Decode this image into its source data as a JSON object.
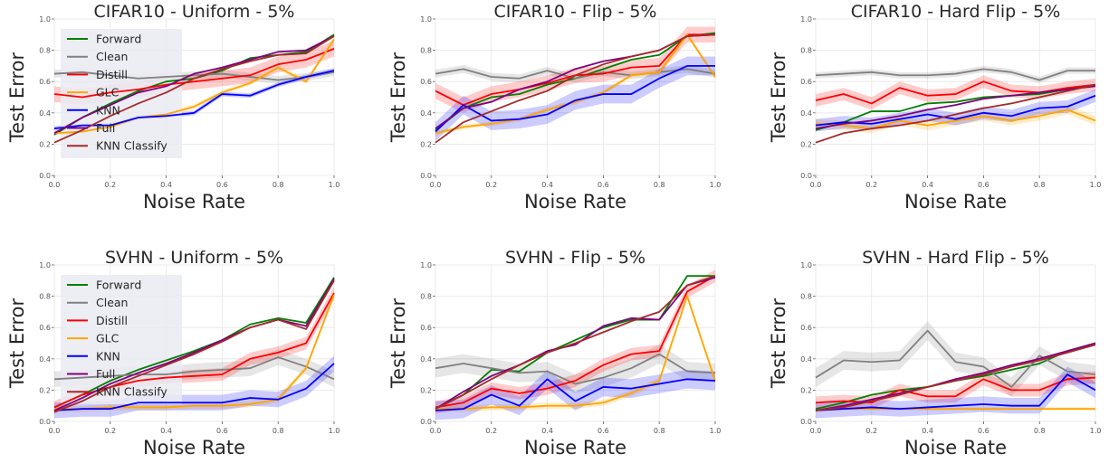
{
  "chart_data": [
    {
      "type": "line",
      "title": "CIFAR10 - Uniform - 5%",
      "xlabel": "Noise Rate",
      "ylabel": "Test Error",
      "xlim": [
        0,
        1
      ],
      "ylim": [
        0,
        1
      ],
      "xticks": [
        "0.0",
        "0.2",
        "0.4",
        "0.6",
        "0.8",
        "1.0"
      ],
      "yticks": [
        "0.0",
        "0.2",
        "0.4",
        "0.6",
        "0.8",
        "1.0"
      ],
      "legend": "upper-left",
      "x": [
        0,
        0.1,
        0.2,
        0.3,
        0.4,
        0.5,
        0.6,
        0.7,
        0.8,
        0.9,
        1.0
      ],
      "series": [
        {
          "name": "Forward",
          "color": "#008000",
          "values": [
            0.26,
            0.37,
            0.46,
            0.54,
            0.6,
            0.62,
            0.67,
            0.75,
            0.77,
            0.79,
            0.9
          ],
          "band": 0
        },
        {
          "name": "Clean",
          "color": "#808080",
          "values": [
            0.65,
            0.66,
            0.64,
            0.62,
            0.63,
            0.64,
            0.65,
            0.63,
            0.61,
            0.63,
            0.66
          ],
          "band": 0.025
        },
        {
          "name": "Distill",
          "color": "#ff0000",
          "values": [
            0.52,
            0.5,
            0.53,
            0.55,
            0.58,
            0.6,
            0.62,
            0.64,
            0.71,
            0.74,
            0.81
          ],
          "band": 0.05
        },
        {
          "name": "GLC",
          "color": "#ffa500",
          "values": [
            0.27,
            0.28,
            0.31,
            0.37,
            0.39,
            0.44,
            0.53,
            0.59,
            0.69,
            0.6,
            0.87
          ],
          "band": 0.015
        },
        {
          "name": "KNN",
          "color": "#0000ff",
          "values": [
            0.3,
            0.32,
            0.32,
            0.37,
            0.38,
            0.4,
            0.52,
            0.51,
            0.58,
            0.63,
            0.67
          ],
          "band": 0.015
        },
        {
          "name": "Full",
          "color": "#800080",
          "values": [
            0.27,
            0.37,
            0.45,
            0.53,
            0.57,
            0.65,
            0.69,
            0.74,
            0.79,
            0.8,
            0.89
          ],
          "band": 0
        },
        {
          "name": "KNN Classify",
          "color": "#a52a2a",
          "values": [
            0.21,
            0.29,
            0.38,
            0.46,
            0.53,
            0.62,
            0.68,
            0.73,
            0.77,
            0.78,
            0.89
          ],
          "band": 0
        }
      ]
    },
    {
      "type": "line",
      "title": "CIFAR10 - Flip - 5%",
      "xlabel": "Noise Rate",
      "ylabel": "Test Error",
      "xlim": [
        0,
        1
      ],
      "ylim": [
        0,
        1
      ],
      "xticks": [
        "0.0",
        "0.2",
        "0.4",
        "0.6",
        "0.8",
        "1.0"
      ],
      "yticks": [
        "0.0",
        "0.2",
        "0.4",
        "0.6",
        "0.8",
        "1.0"
      ],
      "x": [
        0,
        0.1,
        0.2,
        0.3,
        0.4,
        0.5,
        0.6,
        0.7,
        0.8,
        0.9,
        1.0
      ],
      "series": [
        {
          "name": "Forward",
          "color": "#008000",
          "values": [
            0.29,
            0.43,
            0.5,
            0.52,
            0.58,
            0.62,
            0.68,
            0.74,
            0.77,
            0.89,
            0.91
          ],
          "band": 0
        },
        {
          "name": "Clean",
          "color": "#808080",
          "values": [
            0.65,
            0.68,
            0.63,
            0.62,
            0.67,
            0.62,
            0.66,
            0.64,
            0.66,
            0.68,
            0.65
          ],
          "band": 0.025
        },
        {
          "name": "Distill",
          "color": "#ff0000",
          "values": [
            0.54,
            0.45,
            0.52,
            0.55,
            0.59,
            0.64,
            0.65,
            0.69,
            0.7,
            0.9,
            0.9
          ],
          "band": 0.05
        },
        {
          "name": "GLC",
          "color": "#ffa500",
          "values": [
            0.27,
            0.31,
            0.33,
            0.36,
            0.42,
            0.47,
            0.53,
            0.64,
            0.66,
            0.9,
            0.63
          ],
          "band": 0.015
        },
        {
          "name": "KNN",
          "color": "#0000ff",
          "values": [
            0.28,
            0.45,
            0.35,
            0.36,
            0.39,
            0.48,
            0.52,
            0.52,
            0.62,
            0.7,
            0.7
          ],
          "band": 0.06
        },
        {
          "name": "Full",
          "color": "#800080",
          "values": [
            0.3,
            0.43,
            0.47,
            0.55,
            0.6,
            0.68,
            0.73,
            0.76,
            0.8,
            0.89,
            0.9
          ],
          "band": 0
        },
        {
          "name": "KNN Classify",
          "color": "#a52a2a",
          "values": [
            0.21,
            0.34,
            0.41,
            0.48,
            0.54,
            0.64,
            0.71,
            0.76,
            0.8,
            0.89,
            0.9
          ],
          "band": 0
        }
      ]
    },
    {
      "type": "line",
      "title": "CIFAR10 - Hard Flip - 5%",
      "xlabel": "Noise Rate",
      "ylabel": "Test Error",
      "xlim": [
        0,
        1
      ],
      "ylim": [
        0,
        1
      ],
      "xticks": [
        "0.0",
        "0.2",
        "0.4",
        "0.6",
        "0.8",
        "1.0"
      ],
      "yticks": [
        "0.0",
        "0.2",
        "0.4",
        "0.6",
        "0.8",
        "1.0"
      ],
      "x": [
        0,
        0.1,
        0.2,
        0.3,
        0.4,
        0.5,
        0.6,
        0.7,
        0.8,
        0.9,
        1.0
      ],
      "series": [
        {
          "name": "Forward",
          "color": "#008000",
          "values": [
            0.29,
            0.34,
            0.41,
            0.41,
            0.46,
            0.47,
            0.5,
            0.51,
            0.52,
            0.55,
            0.58
          ],
          "band": 0
        },
        {
          "name": "Clean",
          "color": "#808080",
          "values": [
            0.64,
            0.65,
            0.66,
            0.64,
            0.64,
            0.65,
            0.68,
            0.66,
            0.61,
            0.67,
            0.67
          ],
          "band": 0.02
        },
        {
          "name": "Distill",
          "color": "#ff0000",
          "values": [
            0.48,
            0.52,
            0.46,
            0.56,
            0.51,
            0.52,
            0.6,
            0.54,
            0.53,
            0.56,
            0.58
          ],
          "band": 0.04
        },
        {
          "name": "GLC",
          "color": "#ffa500",
          "values": [
            0.33,
            0.32,
            0.3,
            0.35,
            0.32,
            0.35,
            0.38,
            0.35,
            0.38,
            0.42,
            0.35
          ],
          "band": 0.03
        },
        {
          "name": "KNN",
          "color": "#0000ff",
          "values": [
            0.32,
            0.34,
            0.33,
            0.36,
            0.39,
            0.36,
            0.4,
            0.38,
            0.43,
            0.44,
            0.51
          ],
          "band": 0.04
        },
        {
          "name": "Full",
          "color": "#800080",
          "values": [
            0.3,
            0.33,
            0.35,
            0.38,
            0.42,
            0.45,
            0.49,
            0.51,
            0.53,
            0.55,
            0.57
          ],
          "band": 0
        },
        {
          "name": "KNN Classify",
          "color": "#a52a2a",
          "values": [
            0.21,
            0.27,
            0.3,
            0.32,
            0.35,
            0.39,
            0.43,
            0.46,
            0.5,
            0.54,
            0.58
          ],
          "band": 0
        }
      ]
    },
    {
      "type": "line",
      "title": "SVHN - Uniform - 5%",
      "xlabel": "Noise Rate",
      "ylabel": "Test Error",
      "xlim": [
        0,
        1
      ],
      "ylim": [
        0,
        1
      ],
      "xticks": [
        "0.0",
        "0.2",
        "0.4",
        "0.6",
        "0.8",
        "1.0"
      ],
      "yticks": [
        "0.0",
        "0.2",
        "0.4",
        "0.6",
        "0.8",
        "1.0"
      ],
      "legend": "upper-left",
      "x": [
        0,
        0.1,
        0.2,
        0.3,
        0.4,
        0.5,
        0.6,
        0.7,
        0.8,
        0.9,
        1.0
      ],
      "series": [
        {
          "name": "Forward",
          "color": "#008000",
          "values": [
            0.09,
            0.17,
            0.26,
            0.33,
            0.39,
            0.45,
            0.52,
            0.62,
            0.66,
            0.63,
            0.92
          ],
          "band": 0
        },
        {
          "name": "Clean",
          "color": "#808080",
          "values": [
            0.27,
            0.28,
            0.29,
            0.3,
            0.3,
            0.32,
            0.33,
            0.34,
            0.41,
            0.35,
            0.27
          ],
          "band": 0.05
        },
        {
          "name": "Distill",
          "color": "#ff0000",
          "values": [
            0.09,
            0.17,
            0.22,
            0.26,
            0.28,
            0.29,
            0.3,
            0.4,
            0.44,
            0.5,
            0.82
          ],
          "band": 0.04
        },
        {
          "name": "GLC",
          "color": "#ffa500",
          "values": [
            0.08,
            0.08,
            0.09,
            0.09,
            0.09,
            0.1,
            0.1,
            0.11,
            0.14,
            0.34,
            0.81
          ],
          "band": 0.02
        },
        {
          "name": "KNN",
          "color": "#0000ff",
          "values": [
            0.07,
            0.08,
            0.08,
            0.12,
            0.12,
            0.12,
            0.12,
            0.15,
            0.14,
            0.21,
            0.37
          ],
          "band": 0.05
        },
        {
          "name": "Full",
          "color": "#800080",
          "values": [
            0.07,
            0.15,
            0.24,
            0.31,
            0.37,
            0.44,
            0.52,
            0.6,
            0.65,
            0.61,
            0.91
          ],
          "band": 0
        },
        {
          "name": "KNN Classify",
          "color": "#a52a2a",
          "values": [
            0.06,
            0.13,
            0.22,
            0.29,
            0.36,
            0.43,
            0.51,
            0.6,
            0.65,
            0.59,
            0.9
          ],
          "band": 0
        }
      ]
    },
    {
      "type": "line",
      "title": "SVHN - Flip - 5%",
      "xlabel": "Noise Rate",
      "ylabel": "Test Error",
      "xlim": [
        0,
        1
      ],
      "ylim": [
        0,
        1
      ],
      "xticks": [
        "0.0",
        "0.2",
        "0.4",
        "0.6",
        "0.8",
        "1.0"
      ],
      "yticks": [
        "0.0",
        "0.2",
        "0.4",
        "0.6",
        "0.8",
        "1.0"
      ],
      "x": [
        0,
        0.1,
        0.2,
        0.3,
        0.4,
        0.5,
        0.6,
        0.7,
        0.8,
        0.9,
        1.0
      ],
      "series": [
        {
          "name": "Forward",
          "color": "#008000",
          "values": [
            0.08,
            0.17,
            0.33,
            0.32,
            0.44,
            0.52,
            0.6,
            0.65,
            0.65,
            0.93,
            0.93
          ],
          "band": 0
        },
        {
          "name": "Clean",
          "color": "#808080",
          "values": [
            0.34,
            0.37,
            0.34,
            0.31,
            0.32,
            0.24,
            0.28,
            0.34,
            0.43,
            0.32,
            0.31
          ],
          "band": 0.06
        },
        {
          "name": "Distill",
          "color": "#ff0000",
          "values": [
            0.09,
            0.12,
            0.21,
            0.18,
            0.21,
            0.26,
            0.36,
            0.43,
            0.45,
            0.83,
            0.93
          ],
          "band": 0.04
        },
        {
          "name": "GLC",
          "color": "#ffa500",
          "values": [
            0.08,
            0.08,
            0.09,
            0.09,
            0.1,
            0.1,
            0.12,
            0.18,
            0.26,
            0.8,
            0.26
          ],
          "band": 0.02
        },
        {
          "name": "KNN",
          "color": "#0000ff",
          "values": [
            0.07,
            0.08,
            0.17,
            0.1,
            0.27,
            0.13,
            0.22,
            0.21,
            0.24,
            0.27,
            0.26
          ],
          "band": 0.06
        },
        {
          "name": "Full",
          "color": "#800080",
          "values": [
            0.08,
            0.19,
            0.29,
            0.36,
            0.45,
            0.49,
            0.61,
            0.66,
            0.65,
            0.87,
            0.92
          ],
          "band": 0
        },
        {
          "name": "KNN Classify",
          "color": "#a52a2a",
          "values": [
            0.08,
            0.17,
            0.27,
            0.36,
            0.44,
            0.5,
            0.57,
            0.64,
            0.7,
            0.87,
            0.93
          ],
          "band": 0
        }
      ]
    },
    {
      "type": "line",
      "title": "SVHN - Hard Flip - 5%",
      "xlabel": "Noise Rate",
      "ylabel": "Test Error",
      "xlim": [
        0,
        1
      ],
      "ylim": [
        0,
        1
      ],
      "xticks": [
        "0.0",
        "0.2",
        "0.4",
        "0.6",
        "0.8",
        "1.0"
      ],
      "yticks": [
        "0.0",
        "0.2",
        "0.4",
        "0.6",
        "0.8",
        "1.0"
      ],
      "x": [
        0,
        0.1,
        0.2,
        0.3,
        0.4,
        0.5,
        0.6,
        0.7,
        0.8,
        0.9,
        1.0
      ],
      "series": [
        {
          "name": "Forward",
          "color": "#008000",
          "values": [
            0.08,
            0.12,
            0.17,
            0.2,
            0.22,
            0.26,
            0.29,
            0.33,
            0.37,
            0.45,
            0.5
          ],
          "band": 0
        },
        {
          "name": "Clean",
          "color": "#808080",
          "values": [
            0.28,
            0.39,
            0.38,
            0.39,
            0.58,
            0.38,
            0.35,
            0.22,
            0.42,
            0.32,
            0.3
          ],
          "band": 0.06
        },
        {
          "name": "Distill",
          "color": "#ff0000",
          "values": [
            0.12,
            0.13,
            0.12,
            0.2,
            0.16,
            0.16,
            0.27,
            0.2,
            0.2,
            0.27,
            0.28
          ],
          "band": 0.04
        },
        {
          "name": "GLC",
          "color": "#ffa500",
          "values": [
            0.07,
            0.08,
            0.08,
            0.08,
            0.08,
            0.08,
            0.08,
            0.08,
            0.08,
            0.08,
            0.08
          ],
          "band": 0.01
        },
        {
          "name": "KNN",
          "color": "#0000ff",
          "values": [
            0.07,
            0.08,
            0.09,
            0.08,
            0.09,
            0.1,
            0.11,
            0.1,
            0.1,
            0.3,
            0.2
          ],
          "band": 0.05
        },
        {
          "name": "Full",
          "color": "#800080",
          "values": [
            0.07,
            0.1,
            0.14,
            0.18,
            0.22,
            0.27,
            0.31,
            0.36,
            0.4,
            0.45,
            0.5
          ],
          "band": 0
        },
        {
          "name": "KNN Classify",
          "color": "#a52a2a",
          "values": [
            0.07,
            0.09,
            0.13,
            0.17,
            0.22,
            0.26,
            0.3,
            0.35,
            0.39,
            0.44,
            0.49
          ],
          "band": 0
        }
      ]
    }
  ]
}
